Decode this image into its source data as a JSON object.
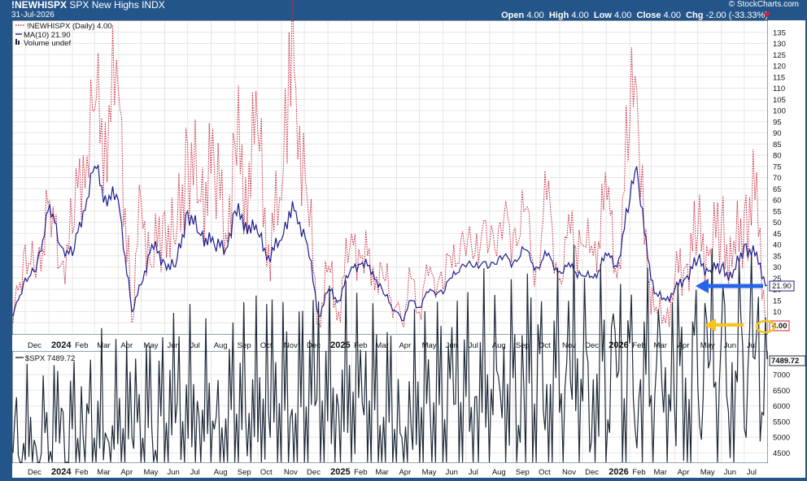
{
  "header": {
    "symbol": "!NEWHISPX",
    "description": "SPX New Highs",
    "exchange": "INDX",
    "date": "31-Jul-2026",
    "brand": "© StockCharts.com",
    "ohlc": {
      "open_label": "Open",
      "open": "4.00",
      "high_label": "High",
      "high": "4.00",
      "low_label": "Low",
      "low": "4.00",
      "close_label": "Close",
      "close": "4.00",
      "chg_label": "Chg",
      "chg": "-2.00 (-33.33%)"
    }
  },
  "legend": {
    "series1": "!NEWHISPX (Daily) 4.00",
    "series2": "MA(10) 21.90",
    "series3": "Volume undef"
  },
  "lower_panel": {
    "legend": "$SPX 7489.72"
  },
  "colors": {
    "frame": "#24558a",
    "newhighs": "#c8283c",
    "ma": "#1c1c8c",
    "spx": "#1f2a38",
    "blue_arrow": "#2563eb",
    "gold_arrow": "#f5c518"
  },
  "chart_data": [
    {
      "type": "line",
      "title": "!NEWHISPX SPX New Highs INDX",
      "ylim": [
        0,
        140
      ],
      "y_ticks": [
        5,
        10,
        15,
        20,
        25,
        30,
        35,
        40,
        45,
        50,
        55,
        60,
        65,
        70,
        75,
        80,
        85,
        90,
        95,
        100,
        105,
        110,
        115,
        120,
        125,
        130,
        135
      ],
      "x_ticks": [
        "Dec",
        "2024",
        "Feb",
        "Mar",
        "Apr",
        "May",
        "Jun",
        "Jul",
        "Aug",
        "Sep",
        "Oct",
        "Nov",
        "Dec",
        "2025",
        "Feb",
        "Mar",
        "Apr",
        "May",
        "Jun",
        "Jul",
        "Aug",
        "Sep",
        "Oct",
        "Nov",
        "Dec",
        "2026",
        "Feb",
        "Mar",
        "Apr",
        "May",
        "Jun",
        "Jul"
      ],
      "year_ticks": [
        "2024",
        "2025",
        "2026"
      ],
      "value_labels": {
        "ma": "21.90",
        "last": "4.00"
      },
      "series": [
        {
          "name": "!NEWHISPX (Daily)",
          "style": "dotted",
          "x": [
            "2023-11-15",
            "2023-12-01",
            "2023-12-15",
            "2024-01-02",
            "2024-01-15",
            "2024-02-01",
            "2024-02-15",
            "2024-03-01",
            "2024-03-15",
            "2024-04-01",
            "2024-04-19",
            "2024-05-01",
            "2024-05-15",
            "2024-06-01",
            "2024-06-15",
            "2024-07-01",
            "2024-07-16",
            "2024-08-05",
            "2024-08-20",
            "2024-09-01",
            "2024-09-15",
            "2024-10-01",
            "2024-10-15",
            "2024-11-01",
            "2024-11-11",
            "2024-11-20",
            "2024-12-05",
            "2024-12-20",
            "2025-01-02",
            "2025-01-15",
            "2025-02-01",
            "2025-02-15",
            "2025-03-01",
            "2025-03-15",
            "2025-04-08",
            "2025-04-20",
            "2025-05-01",
            "2025-05-15",
            "2025-06-01",
            "2025-06-15",
            "2025-07-01",
            "2025-07-15",
            "2025-08-01",
            "2025-08-15",
            "2025-09-01",
            "2025-09-15",
            "2025-10-01",
            "2025-10-15",
            "2025-11-01",
            "2025-11-15",
            "2025-12-01",
            "2025-12-15",
            "2026-01-02",
            "2026-01-15",
            "2026-02-01",
            "2026-02-10",
            "2026-02-20",
            "2026-03-05",
            "2026-03-20",
            "2026-04-01",
            "2026-04-15",
            "2026-05-01",
            "2026-05-15",
            "2026-06-01",
            "2026-06-15",
            "2026-07-01",
            "2026-07-15",
            "2026-07-31"
          ],
          "values": [
            5,
            40,
            25,
            60,
            30,
            45,
            80,
            100,
            95,
            110,
            5,
            60,
            30,
            55,
            40,
            85,
            60,
            75,
            45,
            85,
            70,
            90,
            40,
            60,
            135,
            110,
            60,
            5,
            30,
            10,
            45,
            35,
            30,
            25,
            5,
            25,
            10,
            30,
            20,
            40,
            35,
            45,
            40,
            50,
            45,
            55,
            30,
            60,
            25,
            45,
            40,
            35,
            60,
            25,
            95,
            110,
            40,
            10,
            5,
            25,
            30,
            45,
            35,
            50,
            30,
            55,
            60,
            4
          ]
        },
        {
          "name": "MA(10)",
          "style": "solid",
          "x": [
            "2023-11-15",
            "2023-12-01",
            "2023-12-15",
            "2024-01-02",
            "2024-01-15",
            "2024-02-01",
            "2024-02-15",
            "2024-03-01",
            "2024-03-15",
            "2024-04-01",
            "2024-04-19",
            "2024-05-01",
            "2024-05-15",
            "2024-06-01",
            "2024-06-15",
            "2024-07-01",
            "2024-07-16",
            "2024-08-05",
            "2024-08-20",
            "2024-09-01",
            "2024-09-15",
            "2024-10-01",
            "2024-10-15",
            "2024-11-01",
            "2024-11-11",
            "2024-11-20",
            "2024-12-05",
            "2024-12-20",
            "2025-01-02",
            "2025-01-15",
            "2025-02-01",
            "2025-02-15",
            "2025-03-01",
            "2025-03-15",
            "2025-04-08",
            "2025-04-20",
            "2025-05-01",
            "2025-05-15",
            "2025-06-01",
            "2025-06-15",
            "2025-07-01",
            "2025-07-15",
            "2025-08-01",
            "2025-08-15",
            "2025-09-01",
            "2025-09-15",
            "2025-10-01",
            "2025-10-15",
            "2025-11-01",
            "2025-11-15",
            "2025-12-01",
            "2025-12-15",
            "2026-01-02",
            "2026-01-15",
            "2026-02-01",
            "2026-02-10",
            "2026-02-20",
            "2026-03-05",
            "2026-03-20",
            "2026-04-01",
            "2026-04-15",
            "2026-05-01",
            "2026-05-15",
            "2026-06-01",
            "2026-06-15",
            "2026-07-01",
            "2026-07-15",
            "2026-07-31"
          ],
          "values": [
            8,
            25,
            28,
            58,
            40,
            35,
            55,
            75,
            62,
            60,
            10,
            22,
            40,
            32,
            30,
            55,
            45,
            40,
            38,
            55,
            50,
            45,
            35,
            42,
            55,
            55,
            40,
            8,
            20,
            15,
            30,
            32,
            28,
            18,
            6,
            15,
            12,
            20,
            18,
            28,
            30,
            32,
            30,
            35,
            32,
            38,
            30,
            35,
            28,
            30,
            26,
            25,
            35,
            30,
            60,
            75,
            45,
            18,
            15,
            20,
            25,
            33,
            28,
            30,
            25,
            40,
            35,
            21.9
          ]
        }
      ]
    },
    {
      "type": "line",
      "title": "$SPX",
      "ylim": [
        4200,
        7700
      ],
      "y_ticks": [
        4500,
        5000,
        5500,
        6000,
        6500,
        7000,
        7489.72
      ],
      "x_ticks": [
        "Dec",
        "2024",
        "Feb",
        "Mar",
        "Apr",
        "May",
        "Jun",
        "Jul",
        "Aug",
        "Sep",
        "Oct",
        "Nov",
        "Dec",
        "2025",
        "Feb",
        "Mar",
        "Apr",
        "May",
        "Jun",
        "Jul",
        "Aug",
        "Sep",
        "Oct",
        "Nov",
        "Dec",
        "2026",
        "Feb",
        "Mar",
        "Apr",
        "May",
        "Jun",
        "Jul"
      ],
      "series": [
        {
          "name": "$SPX",
          "x": [
            "2023-11-15",
            "2023-12-15",
            "2024-01-15",
            "2024-02-15",
            "2024-03-15",
            "2024-04-19",
            "2024-05-15",
            "2024-06-15",
            "2024-07-16",
            "2024-08-05",
            "2024-08-20",
            "2024-09-15",
            "2024-10-15",
            "2024-11-15",
            "2024-12-15",
            "2025-01-15",
            "2025-02-15",
            "2025-03-15",
            "2025-04-08",
            "2025-04-20",
            "2025-05-15",
            "2025-06-15",
            "2025-07-15",
            "2025-08-15",
            "2025-09-15",
            "2025-10-15",
            "2025-11-15",
            "2025-12-15",
            "2026-01-15",
            "2026-02-15",
            "2026-03-15",
            "2026-03-31",
            "2026-04-15",
            "2026-05-15",
            "2026-06-15",
            "2026-07-15",
            "2026-07-31"
          ],
          "values": [
            4500,
            4700,
            4800,
            5000,
            5150,
            5000,
            5300,
            5450,
            5650,
            5250,
            5600,
            5650,
            5800,
            5900,
            6000,
            5950,
            6100,
            5650,
            5000,
            5350,
            5900,
            6050,
            6300,
            6400,
            6550,
            6700,
            6800,
            6850,
            6900,
            6850,
            6650,
            6350,
            6900,
            7200,
            7400,
            7500,
            7489.72
          ]
        }
      ]
    }
  ]
}
